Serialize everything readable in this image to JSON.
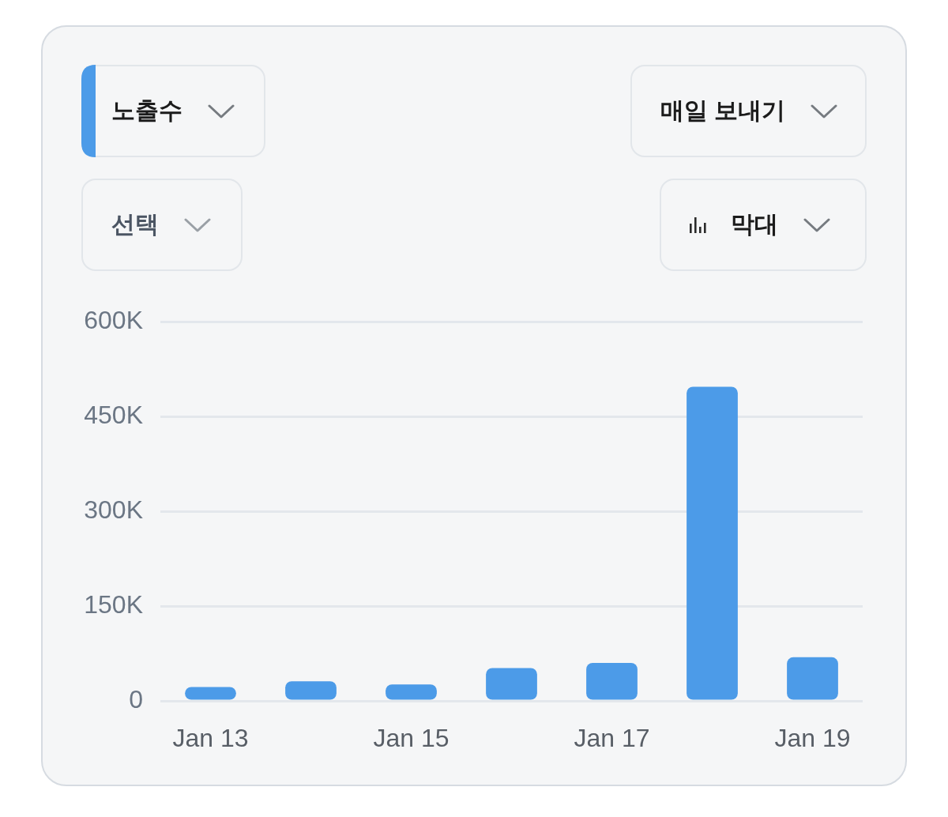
{
  "chart_data": {
    "type": "bar",
    "categories": [
      "Jan 13",
      null,
      "Jan 15",
      null,
      "Jan 17",
      null,
      "Jan 19"
    ],
    "series": [
      {
        "color": "#4c9be8",
        "values": [
          22000,
          31000,
          26000,
          52000,
          60000,
          497000,
          69000
        ]
      }
    ],
    "ylim": [
      0,
      600000
    ],
    "yticks": [
      0,
      {
        "value": 150000,
        "label": "150K"
      },
      {
        "value": 300000,
        "label": "300K"
      },
      {
        "value": 450000,
        "label": "450K"
      },
      {
        "value": 600000,
        "label": "600K"
      }
    ],
    "grid": "y",
    "annotations": [
      "노출수",
      "매일 보내기",
      "선택",
      "막대"
    ]
  }
}
